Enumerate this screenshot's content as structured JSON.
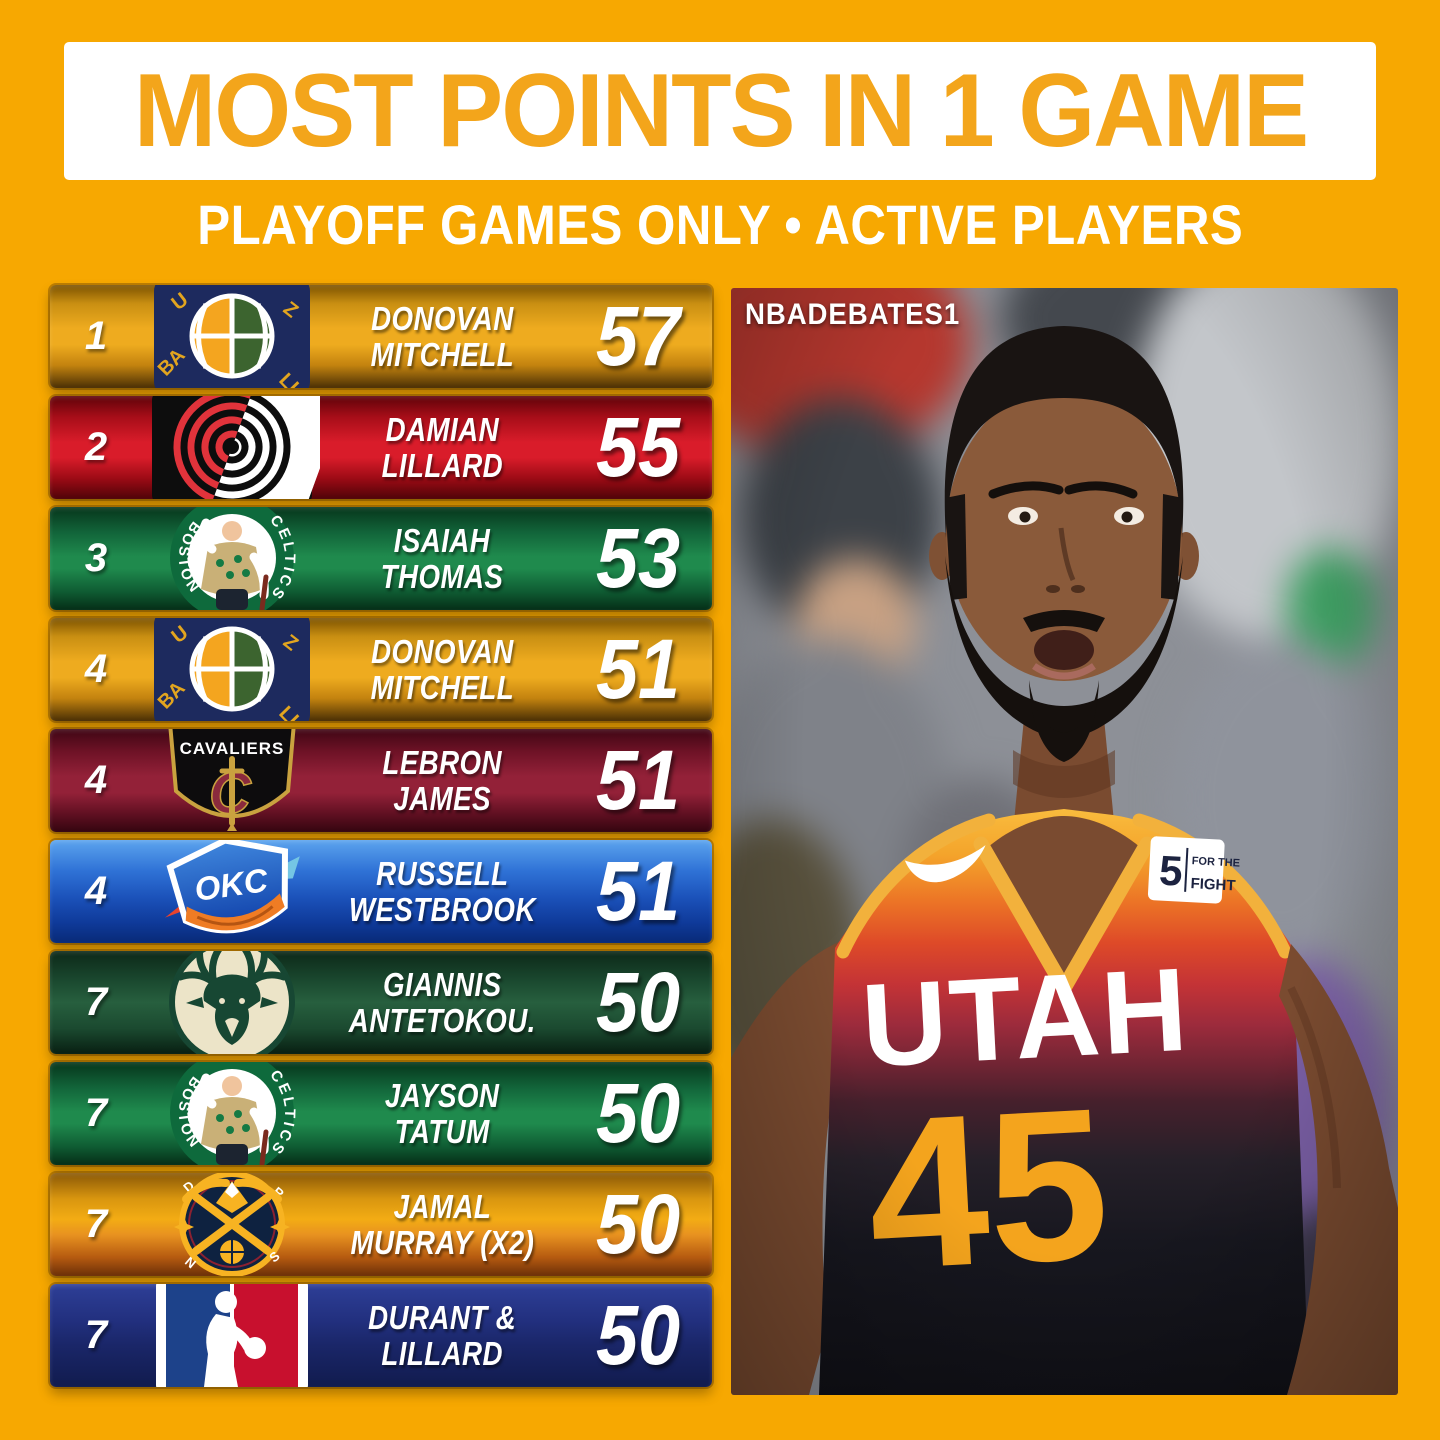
{
  "header": {
    "title": "MOST POINTS IN 1 GAME",
    "subtitle": "PLAYOFF GAMES ONLY • ACTIVE PLAYERS"
  },
  "colors": {
    "background": "#F7A801",
    "title_text": "#F3A51B",
    "text_white": "#FFFFFF",
    "row_gold": "#EEAB1F",
    "row_red": "#D91C2A",
    "row_green": "#1F8A4D",
    "row_maroon": "#932138",
    "row_blue": "#1C53BB",
    "row_darkgreen": "#1B4A30",
    "row_navy": "#1A2668",
    "jersey_number_gold": "#F4A41D"
  },
  "leaderboard": {
    "rows": [
      {
        "rank": "1",
        "team": "utah-jazz",
        "team_label": "Utah Jazz",
        "player_line1": "DONOVAN",
        "player_line2": "MITCHELL",
        "points": "57",
        "color": "gold"
      },
      {
        "rank": "2",
        "team": "trail-blazers",
        "team_label": "Portland Trail Blazers",
        "player_line1": "DAMIAN",
        "player_line2": "LILLARD",
        "points": "55",
        "color": "red"
      },
      {
        "rank": "3",
        "team": "boston-celtics",
        "team_label": "Boston Celtics",
        "player_line1": "ISAIAH",
        "player_line2": "THOMAS",
        "points": "53",
        "color": "green"
      },
      {
        "rank": "4",
        "team": "utah-jazz",
        "team_label": "Utah Jazz",
        "player_line1": "DONOVAN",
        "player_line2": "MITCHELL",
        "points": "51",
        "color": "gold"
      },
      {
        "rank": "4",
        "team": "cleveland-cavaliers",
        "team_label": "Cleveland Cavaliers",
        "player_line1": "LEBRON",
        "player_line2": "JAMES",
        "points": "51",
        "color": "maroon"
      },
      {
        "rank": "4",
        "team": "okc-thunder",
        "team_label": "Oklahoma City Thunder",
        "player_line1": "RUSSELL",
        "player_line2": "WESTBROOK",
        "points": "51",
        "color": "blue"
      },
      {
        "rank": "7",
        "team": "milwaukee-bucks",
        "team_label": "Milwaukee Bucks",
        "player_line1": "GIANNIS",
        "player_line2": "ANTETOKOU.",
        "points": "50",
        "color": "darkgreen"
      },
      {
        "rank": "7",
        "team": "boston-celtics",
        "team_label": "Boston Celtics",
        "player_line1": "JAYSON",
        "player_line2": "TATUM",
        "points": "50",
        "color": "green"
      },
      {
        "rank": "7",
        "team": "denver-nuggets",
        "team_label": "Denver Nuggets",
        "player_line1": "JAMAL",
        "player_line2": "MURRAY (X2)",
        "points": "50",
        "color": "gold2"
      },
      {
        "rank": "7",
        "team": "nba",
        "team_label": "NBA",
        "player_line1": "DURANT &",
        "player_line2": "LILLARD",
        "points": "50",
        "color": "navy"
      }
    ]
  },
  "icons": {
    "jazz_ring_letters": [
      "U",
      "Z",
      "BA",
      "LL"
    ],
    "celtics_ring_top": "CELTICS",
    "celtics_ring_bottom": "BOSTON",
    "cavaliers_wordmark": "CAVALIERS",
    "cavaliers_monogram": "C",
    "okc_monogram": "OKC",
    "nuggets_ring_letters": [
      "D",
      "R",
      "N",
      "S"
    ]
  },
  "photo": {
    "watermark": "NBADEBATES1",
    "jersey_wordmark": "UTAH",
    "jersey_number": "45",
    "patch_number": "5",
    "patch_line1": "FOR THE",
    "patch_line2": "FIGHT"
  },
  "chart_data": {
    "type": "table",
    "title": "MOST POINTS IN 1 GAME",
    "subtitle": "PLAYOFF GAMES ONLY • ACTIVE PLAYERS",
    "columns": [
      "rank",
      "team",
      "player",
      "points"
    ],
    "rows": [
      [
        1,
        "Utah Jazz",
        "Donovan Mitchell",
        57
      ],
      [
        2,
        "Portland Trail Blazers",
        "Damian Lillard",
        55
      ],
      [
        3,
        "Boston Celtics",
        "Isaiah Thomas",
        53
      ],
      [
        4,
        "Utah Jazz",
        "Donovan Mitchell",
        51
      ],
      [
        4,
        "Cleveland Cavaliers",
        "LeBron James",
        51
      ],
      [
        4,
        "Oklahoma City Thunder",
        "Russell Westbrook",
        51
      ],
      [
        7,
        "Milwaukee Bucks",
        "Giannis Antetokou.",
        50
      ],
      [
        7,
        "Boston Celtics",
        "Jayson Tatum",
        50
      ],
      [
        7,
        "Denver Nuggets",
        "Jamal Murray (x2)",
        50
      ],
      [
        7,
        "NBA",
        "Durant & Lillard",
        50
      ]
    ]
  }
}
